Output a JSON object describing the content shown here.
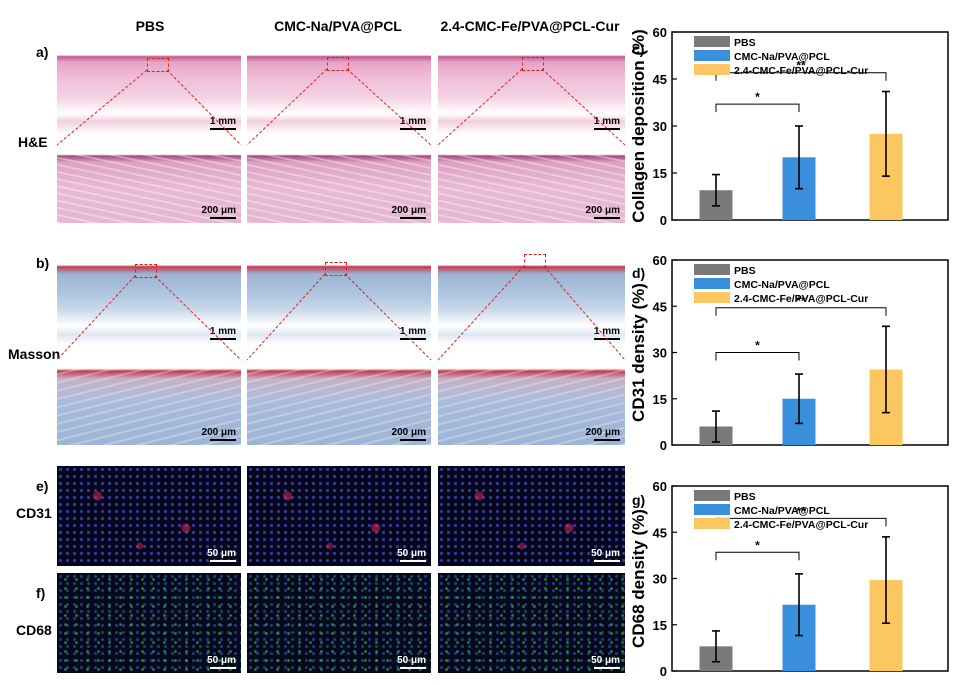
{
  "columns": [
    "PBS",
    "CMC-Na/PVA@PCL",
    "2.4-CMC-Fe/PVA@PCL-Cur"
  ],
  "row_labels": {
    "a": "a)",
    "he": "H&E",
    "b": "b)",
    "masson": "Masson",
    "e": "e)",
    "cd31": "CD31",
    "f": "f)",
    "cd68": "CD68"
  },
  "scale_bars": {
    "low_mag": "1 mm",
    "high_mag": "200 μm",
    "fluor": "50 μm"
  },
  "colors": {
    "pbs": "#7a7a7a",
    "cmc": "#3a8fdc",
    "cur": "#fcc761",
    "zoom_line": "#e0201a"
  },
  "chart_data": [
    {
      "panel": "c)",
      "type": "bar",
      "categories": [
        "PBS",
        "CMC-Na/PVA@PCL",
        "2.4-CMC-Fe/PVA@PCL-Cur"
      ],
      "values": [
        9.5,
        20,
        27.5
      ],
      "errors": [
        5,
        10,
        13.5
      ],
      "ylabel": "Collagen deposition (%)",
      "ylim": [
        0,
        60
      ],
      "yticks": [
        "0",
        "15",
        "30",
        "45",
        "60"
      ],
      "legend": [
        "PBS",
        "CMC-Na/PVA@PCL",
        "2.4-CMC-Fe/PVA@PCL-Cur"
      ],
      "significance": [
        {
          "from": 0,
          "to": 1,
          "label": "*"
        },
        {
          "from": 0,
          "to": 2,
          "label": "**"
        }
      ]
    },
    {
      "panel": "d)",
      "type": "bar",
      "categories": [
        "PBS",
        "CMC-Na/PVA@PCL",
        "2.4-CMC-Fe/PVA@PCL-Cur"
      ],
      "values": [
        6,
        15,
        24.5
      ],
      "errors": [
        5,
        8,
        14
      ],
      "ylabel": "CD31 density (%)",
      "ylim": [
        0,
        60
      ],
      "yticks": [
        "0",
        "15",
        "30",
        "45",
        "60"
      ],
      "legend": [
        "PBS",
        "CMC-Na/PVA@PCL",
        "2.4-CMC-Fe/PVA@PCL-Cur"
      ],
      "significance": [
        {
          "from": 0,
          "to": 1,
          "label": "*"
        },
        {
          "from": 0,
          "to": 2,
          "label": "**"
        }
      ]
    },
    {
      "panel": "g)",
      "type": "bar",
      "categories": [
        "PBS",
        "CMC-Na/PVA@PCL",
        "2.4-CMC-Fe/PVA@PCL-Cur"
      ],
      "values": [
        8,
        21.5,
        29.5
      ],
      "errors": [
        5,
        10,
        14
      ],
      "ylabel": "CD68 density (%)",
      "ylim": [
        0,
        60
      ],
      "yticks": [
        "0",
        "15",
        "30",
        "45",
        "60"
      ],
      "legend": [
        "PBS",
        "CMC-Na/PVA@PCL",
        "2.4-CMC-Fe/PVA@PCL-Cur"
      ],
      "significance": [
        {
          "from": 0,
          "to": 1,
          "label": "*"
        },
        {
          "from": 0,
          "to": 2,
          "label": "**"
        }
      ]
    }
  ]
}
